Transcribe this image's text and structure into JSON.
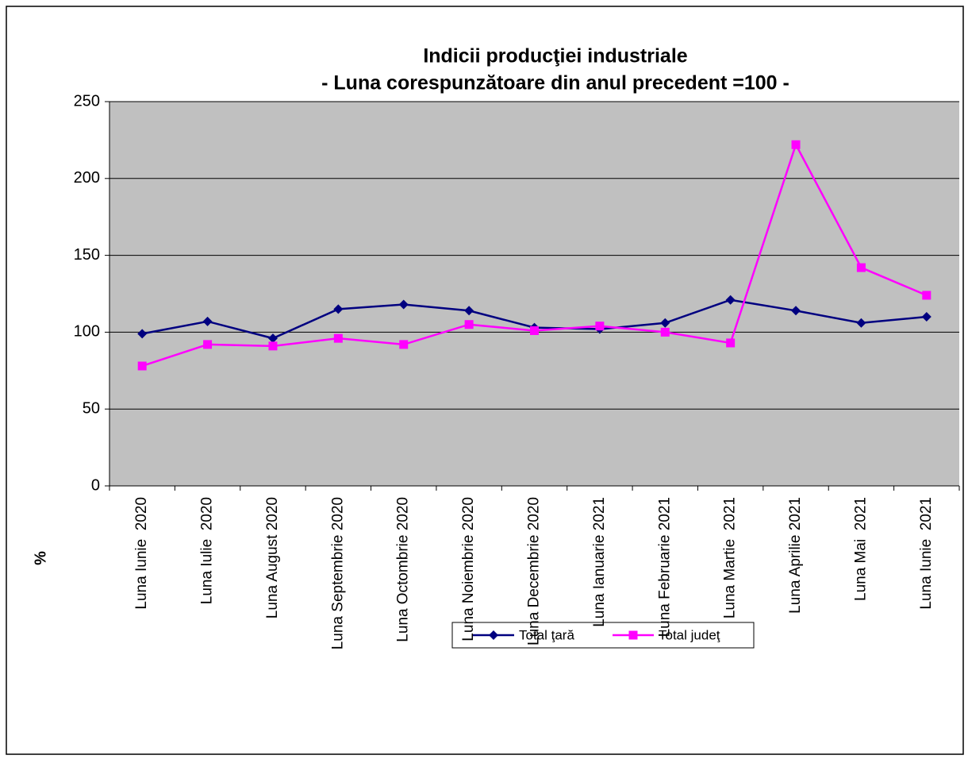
{
  "chart_data": {
    "type": "line",
    "title": "Indicii producţiei industriale",
    "subtitle": "- Luna corespunzătoare din anul precedent =100 -",
    "y_label": "%",
    "categories": [
      "Luna Iunie  2020",
      "Luna Iulie  2020",
      "Luna August 2020",
      "Luna Septembrie 2020",
      "Luna Octombrie 2020",
      "Luna Noiembrie 2020",
      "Luna Decembrie 2020",
      "Luna Ianuarie 2021",
      "Luna Februarie 2021",
      "Luna Martie  2021",
      "Luna Aprilie 2021",
      "Luna Mai  2021",
      "Luna Iunie  2021"
    ],
    "series": [
      {
        "name": "Total ţară",
        "color": "#000080",
        "marker": "diamond",
        "values": [
          99,
          107,
          96,
          115,
          118,
          114,
          103,
          102,
          106,
          121,
          114,
          106,
          110
        ]
      },
      {
        "name": "Total judeţ",
        "color": "#ff00ff",
        "marker": "square",
        "values": [
          78,
          92,
          91,
          96,
          92,
          105,
          101,
          104,
          100,
          93,
          222,
          142,
          124
        ]
      }
    ],
    "ylim": [
      0,
      250
    ],
    "yticks": [
      0,
      50,
      100,
      150,
      200,
      250
    ],
    "grid": true,
    "legend": "bottom"
  }
}
